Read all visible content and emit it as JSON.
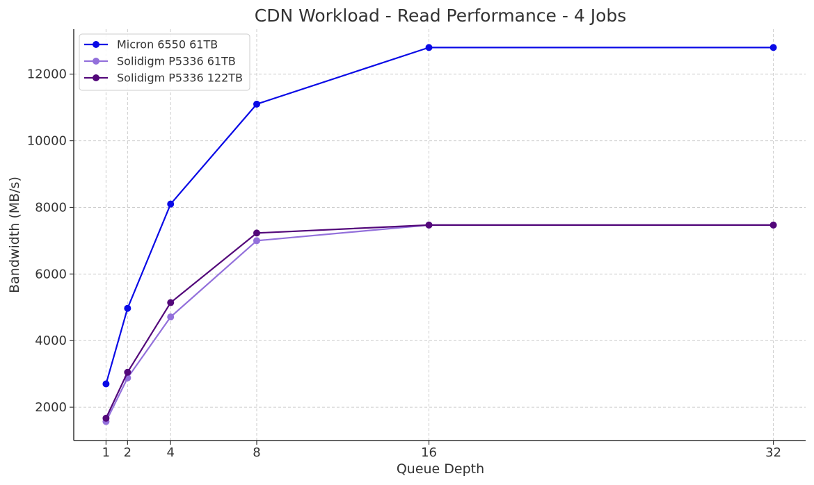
{
  "chart_data": {
    "type": "line",
    "title": "CDN Workload - Read Performance - 4 Jobs",
    "xlabel": "Queue Depth",
    "ylabel": "Bandwidth (MB/s)",
    "x": [
      1,
      2,
      4,
      8,
      16,
      32
    ],
    "xticks": [
      1,
      2,
      4,
      8,
      16,
      32
    ],
    "xlim": [
      -0.5,
      33.5
    ],
    "yticks": [
      2000,
      4000,
      6000,
      8000,
      10000,
      12000
    ],
    "ylim": [
      1000,
      13350
    ],
    "grid": true,
    "legend_position": "top-left",
    "series": [
      {
        "name": "Micron 6550 61TB",
        "color": "#0a0ae6",
        "values": [
          2700,
          4970,
          8100,
          11100,
          12800,
          12800
        ]
      },
      {
        "name": "Solidigm P5336 61TB",
        "color": "#9370db",
        "values": [
          1570,
          2880,
          4710,
          7000,
          7470,
          7470
        ]
      },
      {
        "name": "Solidigm P5336 122TB",
        "color": "#53087a",
        "values": [
          1670,
          3050,
          5140,
          7230,
          7470,
          7470
        ]
      }
    ]
  }
}
